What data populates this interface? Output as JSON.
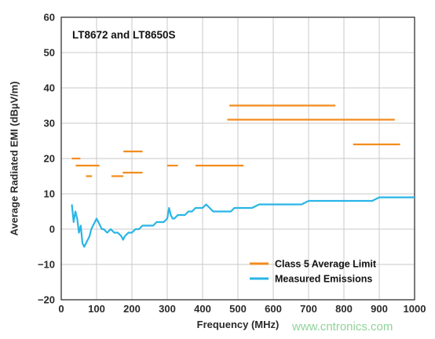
{
  "chart_data": {
    "type": "line",
    "title": "LT8672 and LT8650S",
    "xlabel": "Frequency (MHz)",
    "ylabel": "Average Radiated EMI (dBµV/m)",
    "xlim": [
      0,
      1000
    ],
    "ylim": [
      -20,
      60
    ],
    "x_ticks": [
      "0",
      "100",
      "200",
      "300",
      "400",
      "500",
      "600",
      "700",
      "800",
      "900",
      "1000"
    ],
    "y_ticks": [
      "60",
      "50",
      "40",
      "30",
      "20",
      "10",
      "0",
      "−10",
      "−20"
    ],
    "grid": true,
    "legend_position": "bottom-right",
    "colors": {
      "limit": "#f28c1c",
      "emissions": "#29b5e6"
    },
    "series": [
      {
        "name": "Class 5 Average Limit",
        "segments": [
          {
            "x": [
              30,
              54
            ],
            "y": 20
          },
          {
            "x": [
              41,
              108
            ],
            "y": 18
          },
          {
            "x": [
              70,
              87
            ],
            "y": 15
          },
          {
            "x": [
              142,
              176
            ],
            "y": 15
          },
          {
            "x": [
              174,
              230
            ],
            "y": 16
          },
          {
            "x": [
              176,
              230
            ],
            "y": 22
          },
          {
            "x": [
              300,
              330
            ],
            "y": 18
          },
          {
            "x": [
              380,
              516
            ],
            "y": 18
          },
          {
            "x": [
              476,
              776
            ],
            "y": 35
          },
          {
            "x": [
              470,
              944
            ],
            "y": 31
          },
          {
            "x": [
              826,
              959
            ],
            "y": 24
          }
        ]
      },
      {
        "name": "Measured Emissions",
        "x": [
          30,
          35,
          40,
          45,
          50,
          55,
          60,
          65,
          70,
          75,
          80,
          85,
          90,
          95,
          100,
          105,
          110,
          115,
          120,
          130,
          140,
          150,
          160,
          170,
          175,
          180,
          190,
          200,
          210,
          220,
          230,
          240,
          250,
          260,
          270,
          280,
          290,
          300,
          305,
          310,
          315,
          320,
          330,
          340,
          350,
          360,
          370,
          380,
          390,
          400,
          410,
          420,
          430,
          440,
          450,
          460,
          470,
          480,
          490,
          500,
          510,
          520,
          540,
          560,
          580,
          600,
          620,
          640,
          660,
          680,
          700,
          720,
          740,
          760,
          780,
          800,
          820,
          840,
          860,
          880,
          900,
          920,
          940,
          960,
          980,
          1000
        ],
        "y": [
          7,
          2,
          5,
          3,
          -1,
          1,
          -4,
          -5,
          -4,
          -3,
          -2,
          0,
          1,
          2,
          3,
          2,
          1,
          0,
          0,
          -1,
          0,
          -1,
          -1,
          -2,
          -3,
          -2,
          -1,
          -1,
          0,
          0,
          1,
          1,
          1,
          1,
          2,
          2,
          2,
          3,
          6,
          4,
          3,
          3,
          4,
          4,
          4,
          5,
          5,
          6,
          6,
          6,
          7,
          6,
          5,
          5,
          5,
          5,
          5,
          5,
          6,
          6,
          6,
          6,
          6,
          7,
          7,
          7,
          7,
          7,
          7,
          7,
          8,
          8,
          8,
          8,
          8,
          8,
          8,
          8,
          8,
          8,
          9,
          9,
          9,
          9,
          9,
          9
        ]
      }
    ]
  },
  "watermark": "www.cntronics.com"
}
